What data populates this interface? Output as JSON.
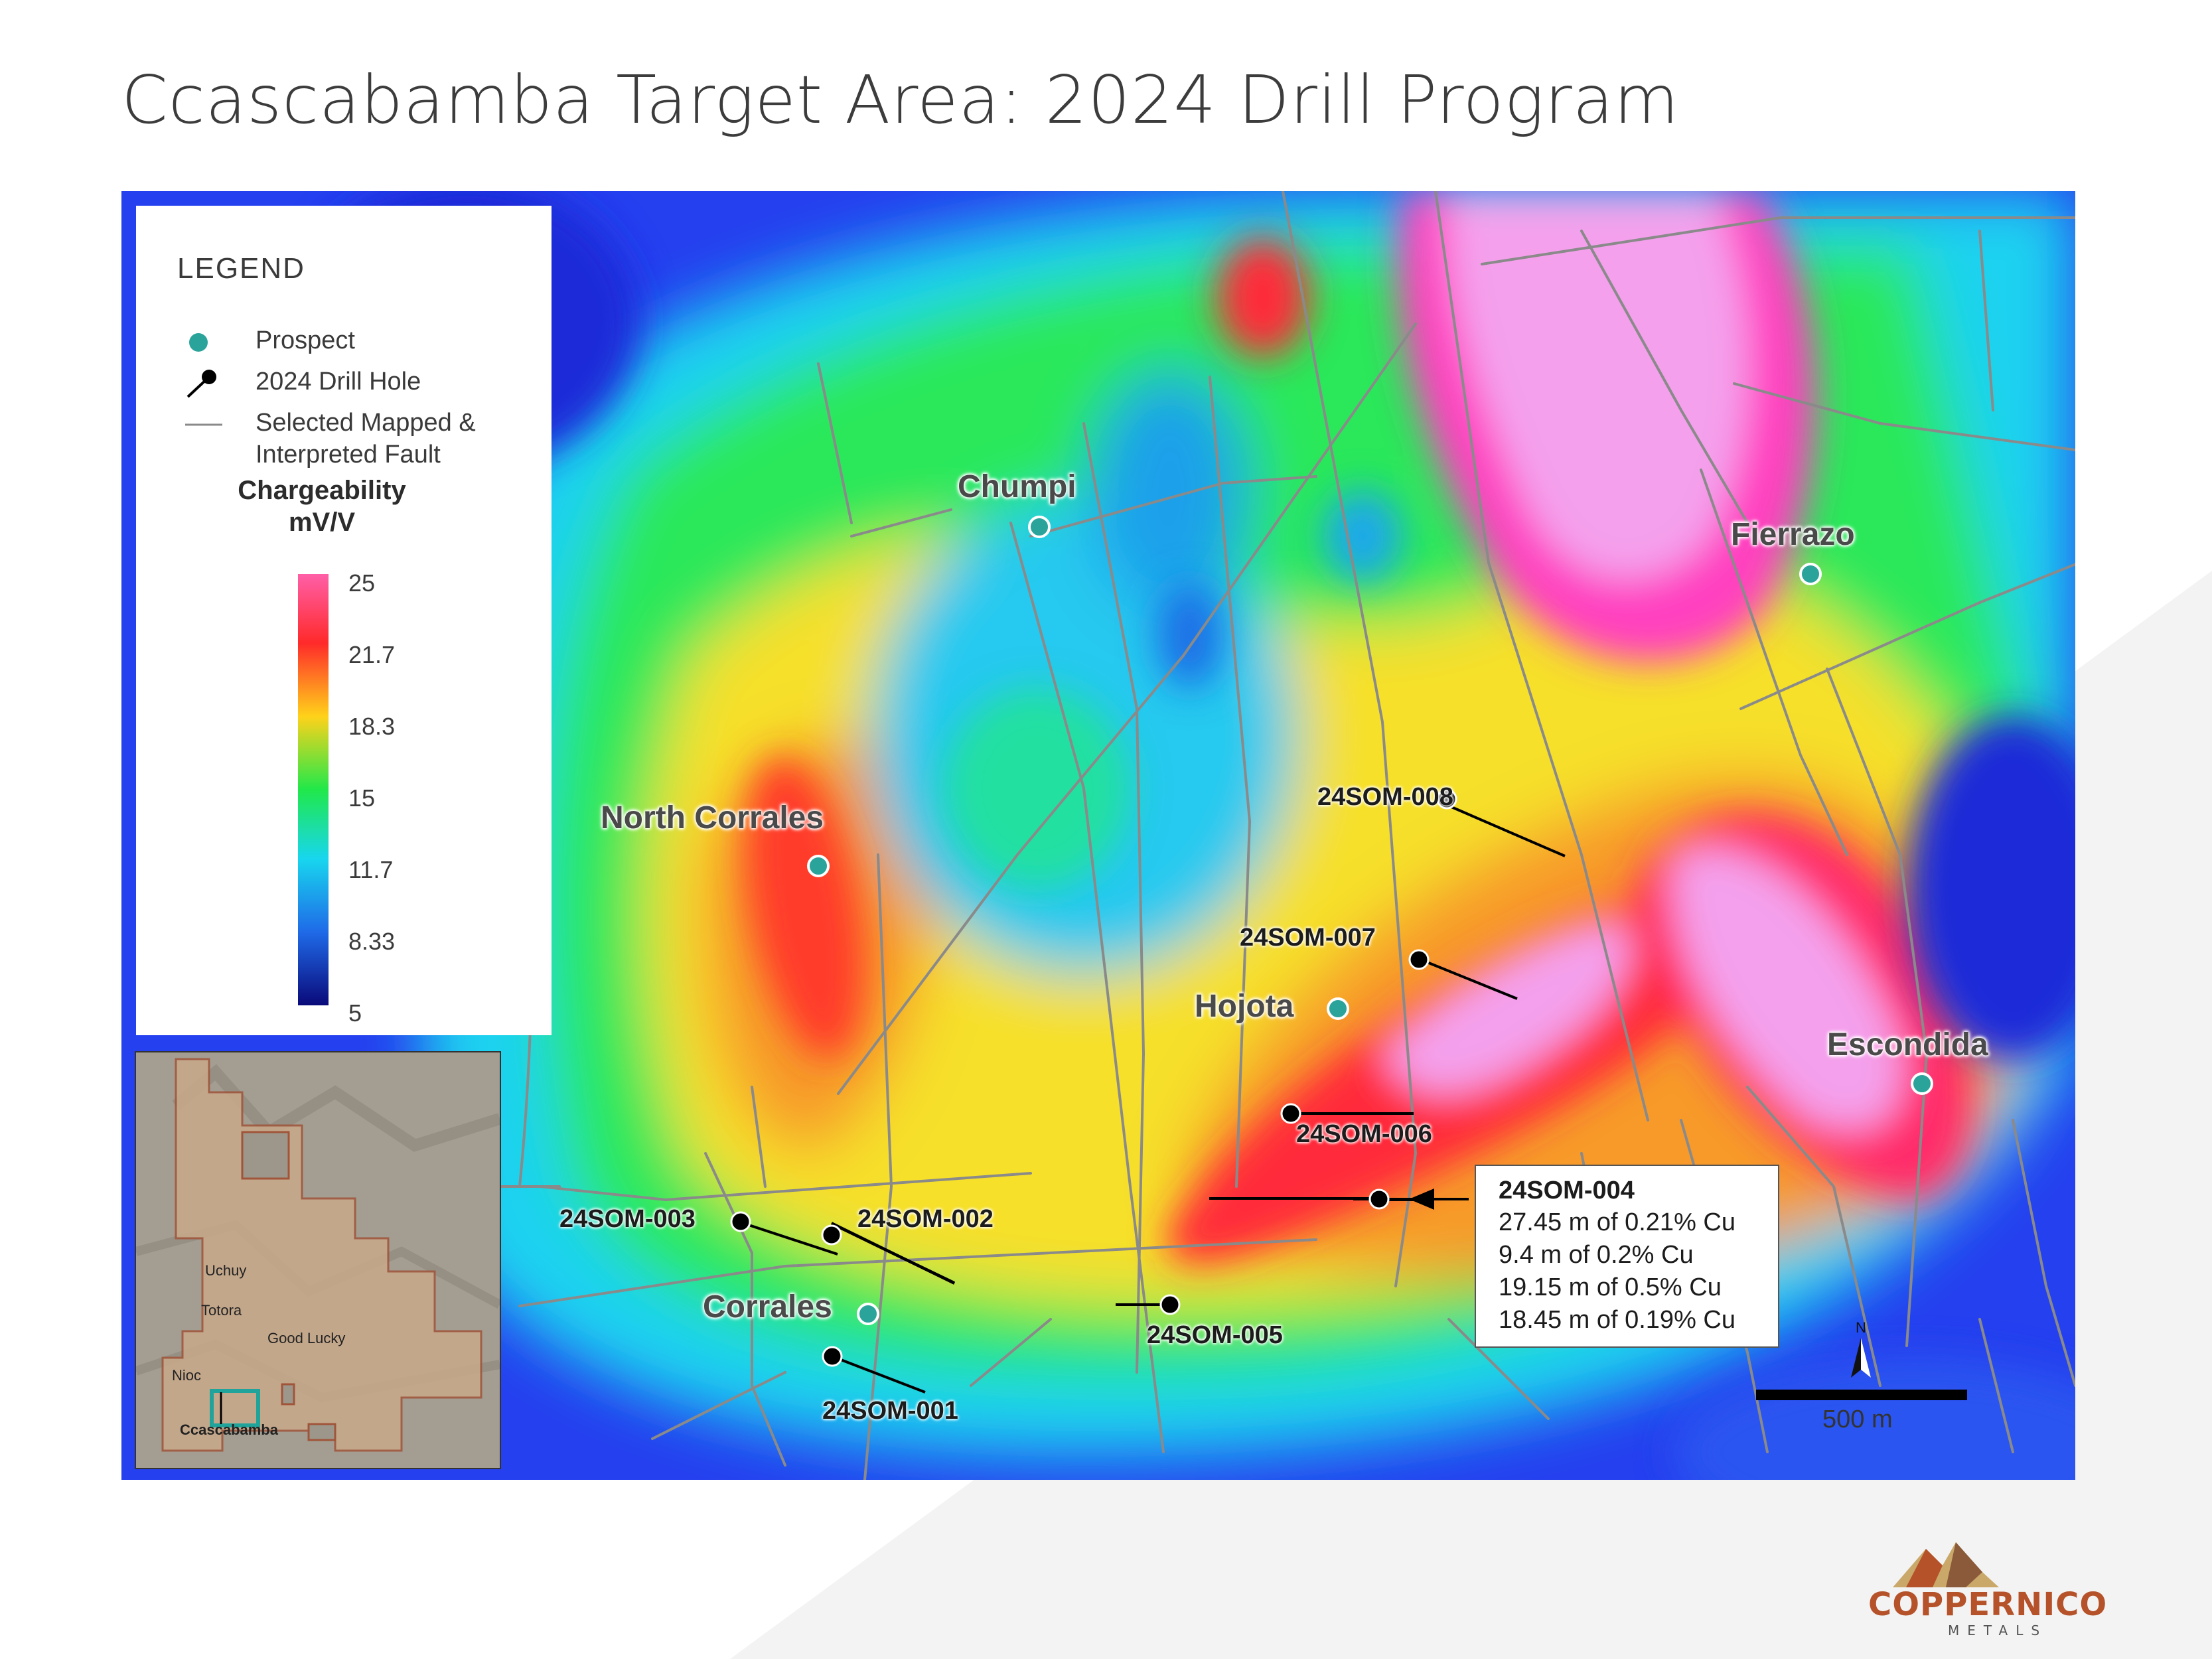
{
  "title": "Ccascabamba Target Area: 2024 Drill Program",
  "legend": {
    "heading": "LEGEND",
    "prospect": "Prospect",
    "drill_hole": "2024 Drill Hole",
    "fault_line1": "Selected Mapped &",
    "fault_line2": "Interpreted Fault",
    "ramp_title_line1": "Chargeability",
    "ramp_title_line2": "mV/V",
    "ramp_ticks": [
      "25",
      "21.7",
      "18.3",
      "15",
      "11.7",
      "8.33",
      "5"
    ],
    "colors": {
      "prospect": "#2aa39a",
      "fault": "#8a8a8a",
      "high": "#ff5fa8",
      "low": "#0a0a7a"
    }
  },
  "prospects": {
    "chumpi": "Chumpi",
    "fierrazo": "Fierrazo",
    "north_corrales": "North Corrales",
    "hojota": "Hojota",
    "escondida": "Escondida",
    "corrales": "Corrales"
  },
  "drill_holes": {
    "h001": "24SOM-001",
    "h002": "24SOM-002",
    "h003": "24SOM-003",
    "h004": "24SOM-004",
    "h005": "24SOM-005",
    "h006": "24SOM-006",
    "h007": "24SOM-007",
    "h008": "24SOM-008"
  },
  "callout": {
    "title": "24SOM-004",
    "lines": [
      "27.45 m of 0.21% Cu",
      "9.4 m of 0.2% Cu",
      "19.15 m of 0.5% Cu",
      "18.45 m of 0.19% Cu"
    ]
  },
  "scale": {
    "label": "500 m",
    "north": "N"
  },
  "inset": {
    "places": [
      "Uchuy",
      "Totora",
      "Good Lucky",
      "Nioc",
      "Ccascabamba"
    ]
  },
  "brand": {
    "name": "COPPERNICO",
    "sub": "METALS"
  }
}
